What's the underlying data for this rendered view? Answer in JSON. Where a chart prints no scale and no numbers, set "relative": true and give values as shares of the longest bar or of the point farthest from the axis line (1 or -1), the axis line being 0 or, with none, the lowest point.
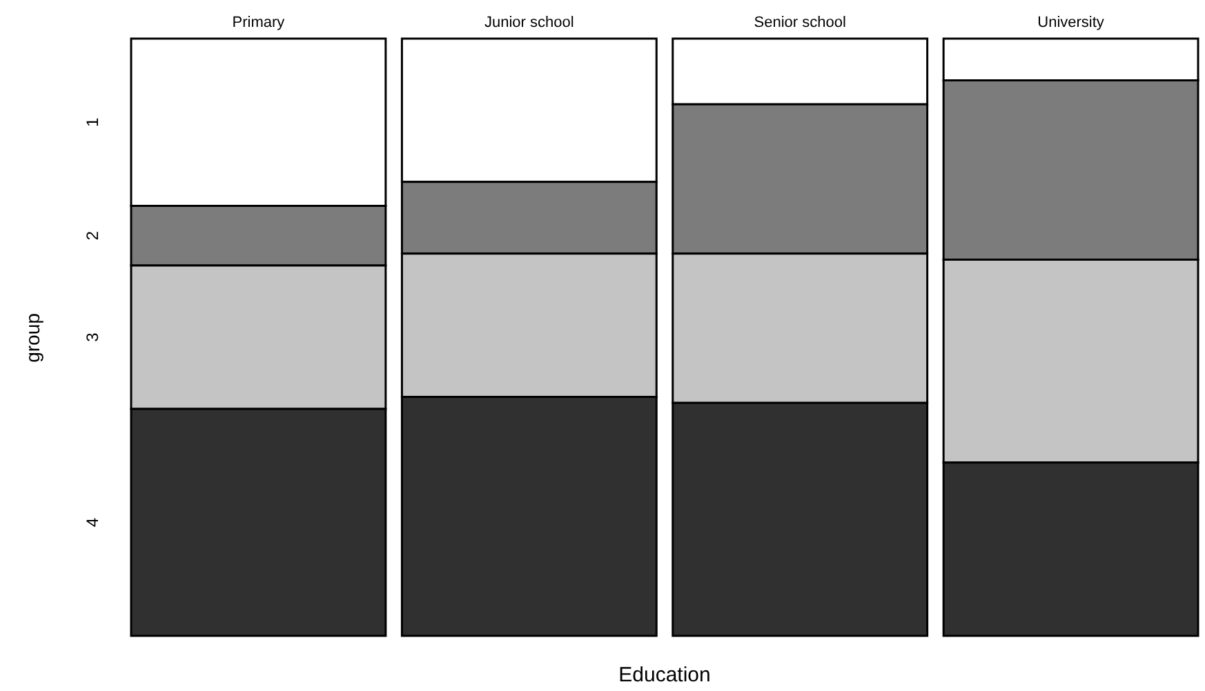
{
  "chart_data": {
    "type": "bar",
    "stacked": true,
    "relative": true,
    "xlabel": "Education",
    "ylabel": "group",
    "categories": [
      "Primary",
      "Junior school",
      "Senior school",
      "University"
    ],
    "series": [
      {
        "name": "1",
        "color": "#ffffff",
        "values": [
          0.28,
          0.24,
          0.11,
          0.07
        ]
      },
      {
        "name": "2",
        "color": "#7c7c7c",
        "values": [
          0.1,
          0.12,
          0.25,
          0.3
        ]
      },
      {
        "name": "3",
        "color": "#c4c4c4",
        "values": [
          0.24,
          0.24,
          0.25,
          0.34
        ]
      },
      {
        "name": "4",
        "color": "#303030",
        "values": [
          0.38,
          0.4,
          0.39,
          0.29
        ]
      }
    ]
  }
}
